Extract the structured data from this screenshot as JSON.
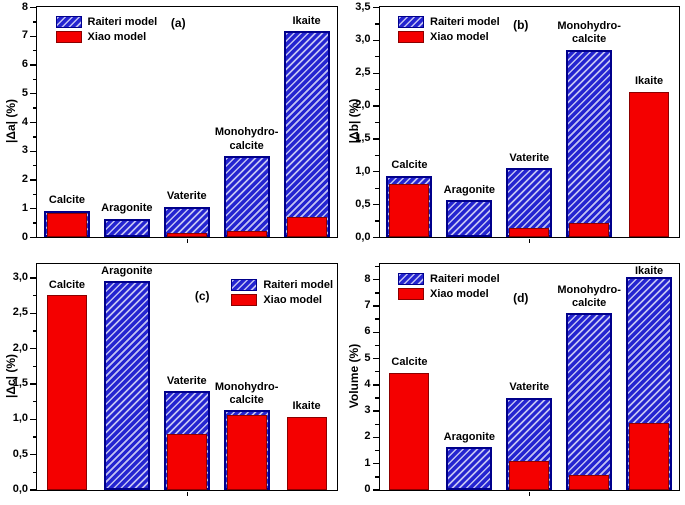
{
  "figure": {
    "background": "#ffffff"
  },
  "colors": {
    "raiteri_fill": "#2424d0",
    "raiteri_hatch": "rgba(255,255,255,0.72)",
    "raiteri_border": "#00008b",
    "xiao_fill": "#f40000",
    "xiao_border": "#8b0000",
    "axis": "#000000",
    "text": "#000000"
  },
  "legend": {
    "items": [
      {
        "series": "raiteri",
        "label": "Raiteri model"
      },
      {
        "series": "xiao",
        "label": "Xiao model"
      }
    ]
  },
  "chart_data": {
    "type": "bar",
    "note": "Four panels; red (Xiao model) bars are drawn in front of blue hatched (Raiteri model) bars at the same x position; null means that series' bar is fully hidden behind the other series' bar",
    "categories": [
      "Calcite",
      "Aragonite",
      "Vaterite",
      "Monohydro-calcite",
      "Ikaite"
    ],
    "category_label_lines": [
      [
        "Calcite"
      ],
      [
        "Aragonite"
      ],
      [
        "Vaterite"
      ],
      [
        "Monohydro-",
        "calcite"
      ],
      [
        "Ikaite"
      ]
    ],
    "series_names": [
      "Raiteri model",
      "Xiao model"
    ],
    "grid": false,
    "panels": [
      {
        "id": "a",
        "letter": "(a)",
        "ylabel": "|Δa| (%)",
        "ylim": [
          0,
          8
        ],
        "axis_max": 8.0,
        "minor_step": 0.5,
        "yticks": [
          {
            "v": 0,
            "label": "0"
          },
          {
            "v": 1,
            "label": "1"
          },
          {
            "v": 2,
            "label": "2"
          },
          {
            "v": 3,
            "label": "3"
          },
          {
            "v": 4,
            "label": "4"
          },
          {
            "v": 5,
            "label": "5"
          },
          {
            "v": 6,
            "label": "6"
          },
          {
            "v": 7,
            "label": "7"
          },
          {
            "v": 8,
            "label": "8"
          }
        ],
        "raiteri": [
          0.92,
          0.63,
          1.05,
          2.82,
          7.15
        ],
        "xiao": [
          0.82,
          null,
          0.15,
          0.2,
          0.68
        ],
        "legend_position": "top-left",
        "letter_x_frac": 0.47,
        "letter_y": 10
      },
      {
        "id": "b",
        "letter": "(b)",
        "ylabel": "|Δb| (%)",
        "ylim": [
          0,
          3.5
        ],
        "axis_max": 3.5,
        "minor_step": 0.25,
        "yticks": [
          {
            "v": 0,
            "label": "0,0"
          },
          {
            "v": 0.5,
            "label": "0,5"
          },
          {
            "v": 1.0,
            "label": "1,0"
          },
          {
            "v": 1.5,
            "label": "1,5"
          },
          {
            "v": 2.0,
            "label": "2,0"
          },
          {
            "v": 2.5,
            "label": "2,5"
          },
          {
            "v": 3.0,
            "label": "3,0"
          },
          {
            "v": 3.5,
            "label": "3,5"
          }
        ],
        "raiteri": [
          0.93,
          0.56,
          1.05,
          2.85,
          null
        ],
        "xiao": [
          0.8,
          null,
          0.14,
          0.21,
          2.21
        ],
        "legend_position": "top-left",
        "letter_x_frac": 0.47,
        "letter_y": 12
      },
      {
        "id": "c",
        "letter": "(c)",
        "ylabel": "|Δc| (%)",
        "ylim": [
          0,
          3.0
        ],
        "axis_max": 3.2,
        "minor_step": 0.25,
        "yticks": [
          {
            "v": 0,
            "label": "0,0"
          },
          {
            "v": 0.5,
            "label": "0,5"
          },
          {
            "v": 1.0,
            "label": "1,0"
          },
          {
            "v": 1.5,
            "label": "1,5"
          },
          {
            "v": 2.0,
            "label": "2,0"
          },
          {
            "v": 2.5,
            "label": "2,5"
          },
          {
            "v": 3.0,
            "label": "3,0"
          }
        ],
        "raiteri": [
          null,
          2.95,
          1.39,
          1.12,
          null
        ],
        "xiao": [
          2.75,
          null,
          0.78,
          1.05,
          1.03
        ],
        "legend_position": "top-right",
        "letter_x_frac": 0.55,
        "letter_y": 26
      },
      {
        "id": "d",
        "letter": "(d)",
        "ylabel": "Volume (%)",
        "ylim": [
          0,
          8
        ],
        "axis_max": 8.6,
        "minor_step": 0.5,
        "yticks": [
          {
            "v": 0,
            "label": "0"
          },
          {
            "v": 1,
            "label": "1"
          },
          {
            "v": 2,
            "label": "2"
          },
          {
            "v": 3,
            "label": "3"
          },
          {
            "v": 4,
            "label": "4"
          },
          {
            "v": 5,
            "label": "5"
          },
          {
            "v": 6,
            "label": "6"
          },
          {
            "v": 7,
            "label": "7"
          },
          {
            "v": 8,
            "label": "8"
          }
        ],
        "raiteri": [
          null,
          1.6,
          3.5,
          6.7,
          8.1
        ],
        "xiao": [
          4.45,
          null,
          1.1,
          0.55,
          2.55
        ],
        "legend_position": "top-left",
        "letter_x_frac": 0.47,
        "letter_y": 28
      }
    ]
  }
}
